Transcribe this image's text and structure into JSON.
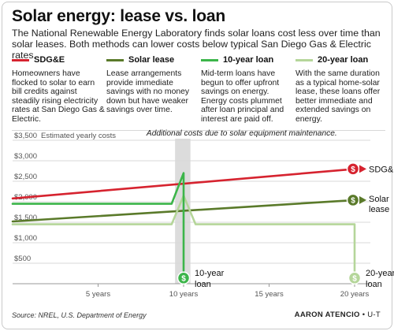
{
  "header": {
    "title": "Solar energy: lease vs. loan",
    "subtitle": "The National Renewable Energy Laboratory finds solar loans cost less over time than solar leases. Both methods can lower costs below typical San Diego Gas & Electric rates."
  },
  "legend": [
    {
      "name": "SDG&E",
      "color": "#d6232f",
      "desc": "Homeowners have flocked to solar to earn bill credits against steadily rising electricity rates at San Diego Gas & Electric."
    },
    {
      "name": "Solar lease",
      "color": "#5a7a2a",
      "desc": "Lease arrangements provide immediate savings with no money down but have weaker savings over time."
    },
    {
      "name": "10-year loan",
      "color": "#3cb54a",
      "desc": "Mid-term loans have begun to offer upfront savings on energy. Energy costs plummet after loan principal and interest are paid off."
    },
    {
      "name": "20-year loan",
      "color": "#b5d69a",
      "desc": "With the same duration as a typical home-solar lease, these loans offer better immediate and extended savings on energy."
    }
  ],
  "chart_data": {
    "type": "line",
    "title": "",
    "ylabel": "Estimated yearly costs",
    "xlabel": "",
    "annotation": "Additional costs due to solar equipment maintenance.",
    "x_range": [
      0,
      20
    ],
    "ylim": [
      0,
      3500
    ],
    "yticks": [
      "$3,500",
      "$3,000",
      "$2,500",
      "$2,000",
      "$1,500",
      "$1,000",
      "$500"
    ],
    "ytick_values": [
      3500,
      3000,
      2500,
      2000,
      1500,
      1000,
      500
    ],
    "xticks": [
      "5 years",
      "10 years",
      "15 years",
      "20 years"
    ],
    "xtick_values": [
      5,
      10,
      15,
      20
    ],
    "highlight_band": [
      9.5,
      10.4
    ],
    "grid": true,
    "series": [
      {
        "name": "SDG&E",
        "end_label": "SDG&E",
        "color": "#d6232f",
        "width": 2.6,
        "x": [
          0,
          20
        ],
        "y": [
          2080,
          2800
        ]
      },
      {
        "name": "Solar lease",
        "end_label": "Solar lease",
        "color": "#5a7a2a",
        "width": 2.6,
        "x": [
          0,
          20
        ],
        "y": [
          1520,
          2040
        ]
      },
      {
        "name": "20-year loan",
        "end_label": "20-year loan",
        "color": "#b5d69a",
        "width": 2.6,
        "x": [
          0,
          9.3,
          10,
          10.7,
          20,
          20
        ],
        "y": [
          1450,
          1450,
          2150,
          1450,
          1450,
          100
        ]
      },
      {
        "name": "10-year loan",
        "end_label": "10-year loan",
        "color": "#3cb54a",
        "width": 2.6,
        "x": [
          0,
          9.3,
          10,
          10,
          10
        ],
        "y": [
          1950,
          1950,
          2700,
          2150,
          100
        ]
      }
    ]
  },
  "footer": {
    "source": "Source: NREL, U.S. Department of Energy",
    "credit_name": "AARON ATENCIO",
    "credit_org": "• U-T"
  }
}
